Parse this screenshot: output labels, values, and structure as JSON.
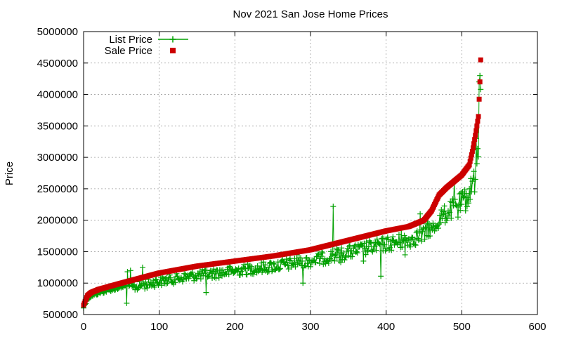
{
  "chart_data": {
    "type": "scatter",
    "title": "Nov 2021 San Jose Home Prices",
    "xlabel": "",
    "ylabel": "Price",
    "xlim": [
      0,
      600
    ],
    "ylim": [
      500000,
      5000000
    ],
    "x_ticks": [
      "0",
      "100",
      "200",
      "300",
      "400",
      "500",
      "600"
    ],
    "y_ticks": [
      "500000",
      "1000000",
      "1500000",
      "2000000",
      "2500000",
      "3000000",
      "3500000",
      "4000000",
      "4500000",
      "5000000"
    ],
    "grid": true,
    "legend_position": "top-left",
    "n_points": 525,
    "sale_price_anchors": {
      "x": [
        0,
        5,
        10,
        20,
        50,
        100,
        150,
        200,
        250,
        300,
        350,
        400,
        430,
        450,
        460,
        470,
        480,
        490,
        500,
        510,
        515,
        518,
        520,
        522,
        524,
        525
      ],
      "y": [
        650000,
        800000,
        850000,
        900000,
        1000000,
        1160000,
        1270000,
        1350000,
        1430000,
        1530000,
        1680000,
        1830000,
        1900000,
        2000000,
        2150000,
        2400000,
        2520000,
        2620000,
        2720000,
        2880000,
        3150000,
        3350000,
        3500000,
        3650000,
        4200000,
        4550000
      ]
    },
    "list_price_outliers": [
      {
        "x": 58,
        "y": 1180000
      },
      {
        "x": 62,
        "y": 1200000
      },
      {
        "x": 78,
        "y": 1250000
      },
      {
        "x": 57,
        "y": 680000
      },
      {
        "x": 95,
        "y": 1050000
      },
      {
        "x": 162,
        "y": 850000
      },
      {
        "x": 282,
        "y": 1450000
      },
      {
        "x": 287,
        "y": 1400000
      },
      {
        "x": 290,
        "y": 1000000
      },
      {
        "x": 330,
        "y": 2220000
      },
      {
        "x": 340,
        "y": 1330000
      },
      {
        "x": 370,
        "y": 1350000
      },
      {
        "x": 393,
        "y": 1110000
      },
      {
        "x": 420,
        "y": 1850000
      },
      {
        "x": 425,
        "y": 1450000
      },
      {
        "x": 440,
        "y": 1800000
      },
      {
        "x": 445,
        "y": 2100000
      },
      {
        "x": 455,
        "y": 2100000
      },
      {
        "x": 462,
        "y": 1950000
      },
      {
        "x": 480,
        "y": 2000000
      },
      {
        "x": 490,
        "y": 2600000
      },
      {
        "x": 495,
        "y": 2050000
      },
      {
        "x": 505,
        "y": 2150000
      },
      {
        "x": 510,
        "y": 2500000
      },
      {
        "x": 517,
        "y": 2450000
      },
      {
        "x": 519,
        "y": 3300000
      },
      {
        "x": 523,
        "y": 4200000
      },
      {
        "x": 524,
        "y": 4300000
      }
    ],
    "series": [
      {
        "name": "List Price",
        "color": "#00a000",
        "style": "linespoints",
        "marker": "plus"
      },
      {
        "name": "Sale Price",
        "color": "#cc0000",
        "style": "points",
        "marker": "square"
      }
    ]
  }
}
